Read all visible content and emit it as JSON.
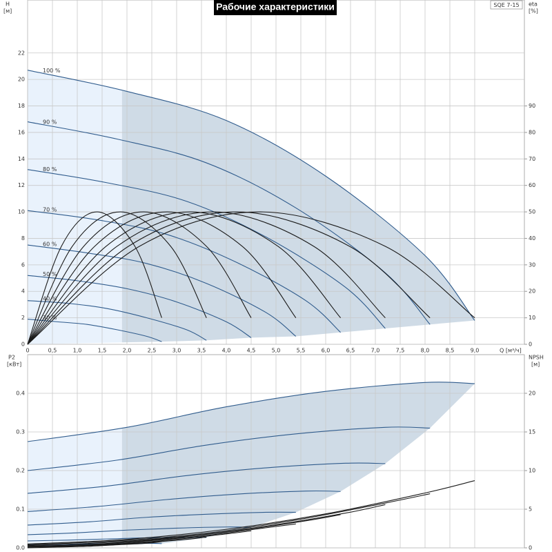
{
  "chart_data": [
    {
      "type": "line",
      "title": "Рабочие характеристики",
      "annotation": "SQE 7-15",
      "ylabel": "H",
      "yunit": "[м]",
      "y2label": "eta",
      "y2unit": "[%]",
      "xlabel": "Q [м³/ч]",
      "xlim": [
        0,
        10
      ],
      "ylim": [
        0,
        26
      ],
      "y2lim": [
        0,
        130
      ],
      "recommended_q_min": 1.9,
      "grid": true,
      "xticks": [
        0,
        {
          "value": 0.5,
          "label": "0,5"
        },
        {
          "value": 1,
          "label": "1,0"
        },
        {
          "value": 1.5,
          "label": "1,5"
        },
        {
          "value": 2,
          "label": "2,0"
        },
        {
          "value": 2.5,
          "label": "2,5"
        },
        {
          "value": 3,
          "label": "3,0"
        },
        {
          "value": 3.5,
          "label": "3,5"
        },
        {
          "value": 4,
          "label": "4,0"
        },
        {
          "value": 4.5,
          "label": "4,5"
        },
        {
          "value": 5,
          "label": "5,0"
        },
        {
          "value": 5.5,
          "label": "5,5"
        },
        {
          "value": 6,
          "label": "6,0"
        },
        {
          "value": 6.5,
          "label": "6,5"
        },
        {
          "value": 7,
          "label": "7,0"
        },
        {
          "value": 7.5,
          "label": "7,5"
        },
        {
          "value": 8,
          "label": "8,0"
        },
        {
          "value": 8.5,
          "label": "8,5"
        },
        {
          "value": 9,
          "label": "9,0"
        }
      ],
      "yticks": [
        0,
        2,
        4,
        6,
        8,
        10,
        12,
        14,
        16,
        18,
        20,
        22
      ],
      "y2ticks": [
        0,
        10,
        20,
        30,
        40,
        50,
        60,
        70,
        80,
        90
      ],
      "series": [
        {
          "name": "100 %",
          "color": "#2f5b8c",
          "x": [
            0,
            2,
            4,
            6,
            8,
            9
          ],
          "values": [
            20.7,
            19.1,
            16.9,
            12.7,
            6.7,
            1.8
          ]
        },
        {
          "name": "90 %",
          "color": "#2f5b8c",
          "x": [
            0,
            1.8,
            3.6,
            5.4,
            7.2,
            8.1
          ],
          "values": [
            16.8,
            15.5,
            13.7,
            10.3,
            5.4,
            1.5
          ]
        },
        {
          "name": "80 %",
          "color": "#2f5b8c",
          "x": [
            0,
            1.6,
            3.2,
            4.8,
            6.4,
            7.2
          ],
          "values": [
            13.2,
            12.2,
            10.8,
            8.1,
            4.3,
            1.2
          ]
        },
        {
          "name": "70 %",
          "color": "#2f5b8c",
          "x": [
            0,
            1.4,
            2.8,
            4.2,
            5.6,
            6.3
          ],
          "values": [
            10.1,
            9.4,
            8.3,
            6.2,
            3.3,
            0.9
          ]
        },
        {
          "name": "60 %",
          "color": "#2f5b8c",
          "x": [
            0,
            1.2,
            2.4,
            3.6,
            4.8,
            5.4
          ],
          "values": [
            7.5,
            6.9,
            6.1,
            4.6,
            2.4,
            0.6
          ]
        },
        {
          "name": "50 %",
          "color": "#2f5b8c",
          "x": [
            0,
            1,
            2,
            3,
            4,
            4.5
          ],
          "values": [
            5.2,
            4.8,
            4.2,
            3.2,
            1.7,
            0.5
          ]
        },
        {
          "name": "40 %",
          "color": "#2f5b8c",
          "x": [
            0,
            0.8,
            1.6,
            2.4,
            3.2,
            3.6
          ],
          "values": [
            3.3,
            3.1,
            2.7,
            2.0,
            1.1,
            0.3
          ]
        },
        {
          "name": "30 %",
          "color": "#2f5b8c",
          "x": [
            0,
            0.6,
            1.2,
            1.8,
            2.4,
            2.7
          ],
          "values": [
            1.9,
            1.7,
            1.5,
            1.1,
            0.6,
            0.2
          ]
        },
        {
          "axis": "y2",
          "color": "#1a1a1a",
          "x": [
            0,
            0.68,
            1.4,
            2.16,
            2.7
          ],
          "values": [
            0,
            37,
            50,
            37,
            10
          ]
        },
        {
          "axis": "y2",
          "color": "#1a1a1a",
          "x": [
            0,
            0.9,
            1.87,
            2.88,
            3.6
          ],
          "values": [
            0,
            37,
            50,
            37,
            10
          ]
        },
        {
          "axis": "y2",
          "color": "#1a1a1a",
          "x": [
            0,
            1.13,
            2.34,
            3.6,
            4.5
          ],
          "values": [
            0,
            37,
            50,
            37,
            10
          ]
        },
        {
          "axis": "y2",
          "color": "#1a1a1a",
          "x": [
            0,
            1.35,
            2.81,
            4.32,
            5.4
          ],
          "values": [
            0,
            37,
            50,
            37,
            10
          ]
        },
        {
          "axis": "y2",
          "color": "#1a1a1a",
          "x": [
            0,
            1.58,
            3.28,
            5.04,
            6.3
          ],
          "values": [
            0,
            37,
            50,
            37,
            10
          ]
        },
        {
          "axis": "y2",
          "color": "#1a1a1a",
          "x": [
            0,
            1.8,
            3.74,
            5.76,
            7.2
          ],
          "values": [
            0,
            37,
            50,
            37,
            10
          ]
        },
        {
          "axis": "y2",
          "color": "#1a1a1a",
          "x": [
            0,
            2.03,
            4.21,
            6.48,
            8.1
          ],
          "values": [
            0,
            37,
            50,
            37,
            10
          ]
        },
        {
          "axis": "y2",
          "color": "#1a1a1a",
          "x": [
            0,
            2.25,
            4.68,
            7.2,
            9.0
          ],
          "values": [
            0,
            37,
            50,
            37,
            10
          ]
        }
      ]
    },
    {
      "type": "line",
      "ylabel": "P2",
      "yunit": "[кВт]",
      "y2label": "NPSH",
      "y2unit": "[м]",
      "xlim": [
        0,
        10
      ],
      "ylim": [
        0,
        0.5
      ],
      "y2lim": [
        0,
        25
      ],
      "grid": true,
      "yticks": [
        {
          "value": 0,
          "label": "0.0"
        },
        0.1,
        0.2,
        0.3,
        0.4
      ],
      "y2ticks": [
        0,
        5,
        10,
        15,
        20
      ],
      "series": [
        {
          "color": "#2f5b8c",
          "x": [
            0,
            2,
            4,
            6,
            8,
            9
          ],
          "values": [
            0.275,
            0.312,
            0.365,
            0.405,
            0.428,
            0.425
          ]
        },
        {
          "color": "#2f5b8c",
          "x": [
            0,
            1.8,
            3.6,
            5.4,
            7.2,
            8.1
          ],
          "values": [
            0.2,
            0.227,
            0.266,
            0.295,
            0.312,
            0.31
          ]
        },
        {
          "color": "#2f5b8c",
          "x": [
            0,
            1.6,
            3.2,
            4.8,
            6.4,
            7.2
          ],
          "values": [
            0.141,
            0.16,
            0.187,
            0.207,
            0.219,
            0.218
          ]
        },
        {
          "color": "#2f5b8c",
          "x": [
            0,
            1.4,
            2.8,
            4.2,
            5.6,
            6.3
          ],
          "values": [
            0.094,
            0.107,
            0.125,
            0.139,
            0.147,
            0.146
          ]
        },
        {
          "color": "#2f5b8c",
          "x": [
            0,
            1.2,
            2.4,
            3.6,
            4.8,
            5.4
          ],
          "values": [
            0.059,
            0.067,
            0.079,
            0.087,
            0.092,
            0.092
          ]
        },
        {
          "color": "#2f5b8c",
          "x": [
            0,
            1,
            2,
            3,
            4,
            4.5
          ],
          "values": [
            0.034,
            0.039,
            0.046,
            0.051,
            0.054,
            0.053
          ]
        },
        {
          "color": "#2f5b8c",
          "x": [
            0,
            0.8,
            1.6,
            2.4,
            3.2,
            3.6
          ],
          "values": [
            0.018,
            0.02,
            0.023,
            0.026,
            0.027,
            0.027
          ]
        },
        {
          "color": "#2f5b8c",
          "x": [
            0,
            0.6,
            1.2,
            1.8,
            2.4,
            2.7
          ],
          "values": [
            0.007,
            0.008,
            0.01,
            0.011,
            0.012,
            0.011
          ]
        },
        {
          "axis": "y2",
          "color": "#1a1a1a",
          "x": [
            0,
            2,
            4,
            6,
            8,
            9
          ],
          "values": [
            0.5,
            1.1,
            2.4,
            4.4,
            7.1,
            8.7
          ]
        },
        {
          "axis": "y2",
          "color": "#1a1a1a",
          "x": [
            0,
            1.8,
            3.6,
            5.4,
            7.2,
            8.1
          ],
          "values": [
            0.4,
            0.9,
            1.9,
            3.6,
            5.8,
            7.0
          ]
        },
        {
          "axis": "y2",
          "color": "#1a1a1a",
          "x": [
            0,
            1.6,
            3.2,
            4.8,
            6.4,
            7.2
          ],
          "values": [
            0.3,
            0.7,
            1.5,
            2.8,
            4.5,
            5.6
          ]
        },
        {
          "axis": "y2",
          "color": "#1a1a1a",
          "x": [
            0,
            1.4,
            2.8,
            4.2,
            5.6,
            6.3
          ],
          "values": [
            0.2,
            0.5,
            1.2,
            2.2,
            3.5,
            4.3
          ]
        },
        {
          "axis": "y2",
          "color": "#1a1a1a",
          "x": [
            0,
            1.2,
            2.4,
            3.6,
            4.8,
            5.4
          ],
          "values": [
            0.2,
            0.4,
            0.9,
            1.6,
            2.6,
            3.1
          ]
        },
        {
          "axis": "y2",
          "color": "#1a1a1a",
          "x": [
            0,
            1,
            2,
            3,
            4,
            4.5
          ],
          "values": [
            0.1,
            0.3,
            0.6,
            1.1,
            1.8,
            2.2
          ]
        },
        {
          "axis": "y2",
          "color": "#1a1a1a",
          "x": [
            0,
            0.8,
            1.6,
            2.4,
            3.2,
            3.6
          ],
          "values": [
            0.1,
            0.2,
            0.4,
            0.7,
            1.1,
            1.4
          ]
        },
        {
          "axis": "y2",
          "color": "#1a1a1a",
          "x": [
            0,
            0.6,
            1.2,
            1.8,
            2.4,
            2.7
          ],
          "values": [
            0,
            0.1,
            0.2,
            0.4,
            0.6,
            0.8
          ]
        }
      ]
    }
  ]
}
